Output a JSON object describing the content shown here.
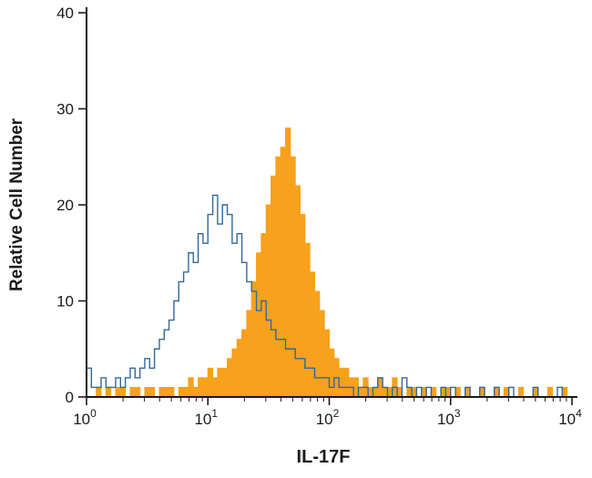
{
  "figure": {
    "background": "#FFFFFF"
  },
  "chart_data": {
    "type": "histogram",
    "title": "",
    "xlabel": "IL-17F",
    "ylabel": "Relative Cell Number",
    "x_scale": "log10",
    "x_log_range": [
      0,
      4
    ],
    "ylim": [
      0,
      40
    ],
    "y_ticks": [
      {
        "value": 0,
        "label": "0"
      },
      {
        "value": 10,
        "label": "10"
      },
      {
        "value": 20,
        "label": "20"
      },
      {
        "value": 30,
        "label": "30"
      },
      {
        "value": 40,
        "label": "40"
      }
    ],
    "x_ticks": [
      {
        "log": 0,
        "base": "10",
        "exp": "0"
      },
      {
        "log": 1,
        "base": "10",
        "exp": "1"
      },
      {
        "log": 2,
        "base": "10",
        "exp": "2"
      },
      {
        "log": 3,
        "base": "10",
        "exp": "3"
      },
      {
        "log": 4,
        "base": "10",
        "exp": "4"
      }
    ],
    "bins": 100,
    "grid": false,
    "legend": "none",
    "axis_color": "#1A1A1A",
    "series": [
      {
        "name": "filled-orange-histogram",
        "style": "filled",
        "color": "#F7A11C",
        "peak": {
          "x_approx": 44,
          "height": 28
        },
        "values": [
          0,
          0,
          1,
          0,
          1,
          0,
          1,
          1,
          0,
          1,
          1,
          0,
          1,
          1,
          0,
          1,
          1,
          1,
          0,
          1,
          1,
          2,
          1,
          2,
          2,
          3,
          2,
          3,
          3,
          4,
          5,
          6,
          7,
          9,
          12,
          15,
          17,
          20,
          23,
          25,
          26,
          28,
          25,
          22,
          19,
          16,
          13,
          11,
          9,
          7,
          5,
          4,
          3,
          3,
          2,
          2,
          1,
          2,
          1,
          1,
          2,
          1,
          1,
          2,
          1,
          0,
          1,
          1,
          0,
          1,
          0,
          1,
          0,
          1,
          1,
          0,
          1,
          0,
          1,
          0,
          0,
          1,
          0,
          0,
          1,
          0,
          1,
          0,
          0,
          1,
          0,
          0,
          1,
          0,
          0,
          1,
          0,
          0,
          1,
          0
        ]
      },
      {
        "name": "open-blue-histogram",
        "style": "open",
        "color": "#33689B",
        "peak": {
          "x_approx": 11,
          "height": 21
        },
        "values": [
          3,
          1,
          1,
          2,
          1,
          1,
          2,
          1,
          2,
          3,
          2,
          3,
          4,
          3,
          5,
          6,
          7,
          8,
          10,
          12,
          13,
          15,
          14,
          17,
          16,
          19,
          21,
          18,
          20,
          19,
          16,
          17,
          14,
          12,
          11,
          9,
          10,
          8,
          7,
          6,
          6,
          5,
          5,
          4,
          4,
          3,
          3,
          2,
          2,
          2,
          1,
          2,
          1,
          1,
          1,
          0,
          1,
          1,
          0,
          1,
          2,
          1,
          0,
          1,
          0,
          2,
          1,
          0,
          1,
          0,
          1,
          0,
          0,
          1,
          0,
          1,
          0,
          0,
          1,
          0,
          0,
          1,
          0,
          0,
          1,
          0,
          0,
          1,
          0,
          0,
          0,
          0,
          1,
          0,
          0,
          0,
          0,
          1,
          0,
          0
        ]
      }
    ]
  }
}
